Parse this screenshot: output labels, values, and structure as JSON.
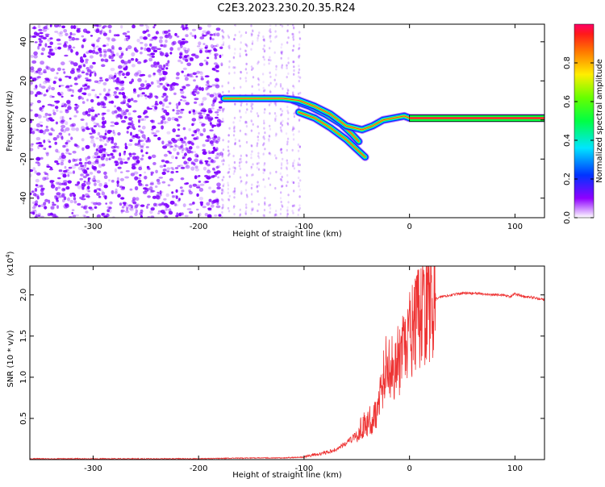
{
  "title": "C2E3.2023.230.20.35.R24",
  "colors": {
    "snr_line": "#ee3333",
    "spectrum_core": "#ff2a2a",
    "scatter": "#7f00ff"
  },
  "chart_data": [
    {
      "type": "heatmap",
      "xlabel": "Height of straight line (km)",
      "ylabel": "Frequency (Hz)",
      "xlim": [
        -360,
        128
      ],
      "ylim": [
        -50,
        49
      ],
      "xticks": [
        -300,
        -200,
        -100,
        0,
        100
      ],
      "xtick_labels": [
        "-300",
        "-200",
        "-100",
        "0",
        "100"
      ],
      "yticks": [
        -40,
        -20,
        0,
        20,
        40
      ],
      "ytick_labels": [
        "-40",
        "-20",
        "0",
        "20",
        "40"
      ],
      "colorbar": {
        "label": "Normalized spectral amplitude",
        "range": [
          0,
          1
        ],
        "ticks": [
          0.0,
          0.2,
          0.4,
          0.6,
          0.8
        ],
        "tick_labels": [
          "0.0",
          "0.2",
          "0.4",
          "0.6",
          "0.8"
        ]
      },
      "noise_region": {
        "x": [
          -360,
          -178
        ],
        "y": [
          -50,
          49
        ]
      },
      "faint_region": {
        "x": [
          -178,
          -100
        ],
        "y": [
          -50,
          49
        ]
      },
      "main_track": [
        [
          -176,
          11
        ],
        [
          -160,
          11
        ],
        [
          -140,
          11
        ],
        [
          -120,
          11
        ],
        [
          -105,
          10
        ],
        [
          -90,
          7
        ],
        [
          -75,
          3
        ],
        [
          -60,
          -3
        ],
        [
          -45,
          -5
        ],
        [
          -35,
          -3
        ],
        [
          -25,
          0
        ],
        [
          -15,
          1
        ],
        [
          -5,
          2
        ],
        [
          0,
          1
        ],
        [
          128,
          1
        ]
      ],
      "upper_branch": [
        [
          -110,
          10
        ],
        [
          -95,
          7
        ],
        [
          -80,
          3
        ],
        [
          -65,
          -2
        ],
        [
          -55,
          -7
        ],
        [
          -48,
          -11
        ]
      ],
      "lower_branch": [
        [
          -105,
          4
        ],
        [
          -90,
          1
        ],
        [
          -75,
          -4
        ],
        [
          -60,
          -10
        ],
        [
          -50,
          -15
        ],
        [
          -42,
          -19
        ]
      ]
    },
    {
      "type": "line",
      "xlabel": "Height of straight line (km)",
      "ylabel": "SNR (10 * v/v)",
      "yscale_label": "(x10",
      "yscale_exp": "4",
      "yscale_close": ")",
      "xlim": [
        -360,
        128
      ],
      "ylim": [
        0,
        2.35
      ],
      "xticks": [
        -300,
        -200,
        -100,
        0,
        100
      ],
      "xtick_labels": [
        "-300",
        "-200",
        "-100",
        "0",
        "100"
      ],
      "yticks": [
        0.5,
        1.0,
        1.5,
        2.0
      ],
      "ytick_labels": [
        "0.5",
        "1.0",
        "1.5",
        "2.0"
      ],
      "series": [
        {
          "x": [
            -360,
            -300,
            -250,
            -200,
            -150,
            -120,
            -100,
            -90,
            -80,
            -70,
            -60,
            -50,
            -45,
            -40,
            -35,
            -30,
            -25,
            -20,
            -15,
            -10,
            -5,
            0,
            5,
            10,
            15,
            20,
            25,
            30,
            40,
            50,
            60,
            70,
            80,
            90,
            95,
            100,
            110,
            120,
            128
          ],
          "values": [
            0.01,
            0.01,
            0.01,
            0.01,
            0.02,
            0.02,
            0.03,
            0.06,
            0.08,
            0.12,
            0.2,
            0.3,
            0.4,
            0.45,
            0.5,
            0.6,
            1.0,
            1.2,
            1.1,
            1.2,
            1.3,
            1.5,
            1.6,
            1.75,
            1.85,
            1.9,
            1.95,
            1.98,
            2.0,
            2.02,
            2.02,
            2.01,
            2.0,
            2.0,
            1.98,
            2.01,
            1.98,
            1.96,
            1.94
          ]
        }
      ]
    }
  ]
}
